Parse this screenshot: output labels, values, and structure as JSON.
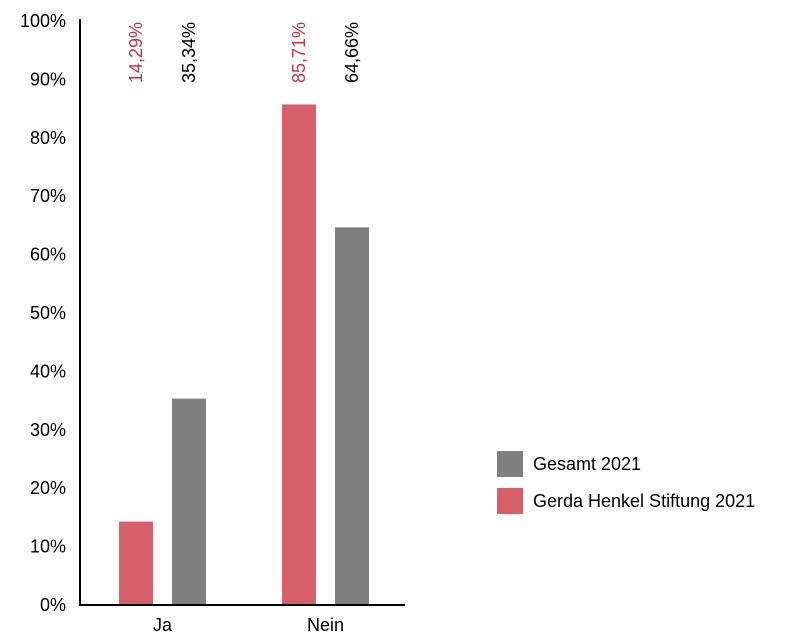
{
  "chart_data": {
    "type": "bar",
    "categories": [
      "Ja",
      "Nein"
    ],
    "series": [
      {
        "name": "Gerda Henkel Stiftung 2021",
        "color": "#D75F6A",
        "values": [
          14.29,
          85.71
        ],
        "labels": [
          "14,29%",
          "85,71%"
        ]
      },
      {
        "name": "Gesamt 2021",
        "color": "#7F7F7F",
        "values": [
          35.34,
          64.66
        ],
        "labels": [
          "35,34%",
          "64,66%"
        ]
      }
    ],
    "y_ticks": [
      {
        "value": 0,
        "label": "0%"
      },
      {
        "value": 10,
        "label": "10%"
      },
      {
        "value": 20,
        "label": "20%"
      },
      {
        "value": 30,
        "label": "30%"
      },
      {
        "value": 40,
        "label": "40%"
      },
      {
        "value": 50,
        "label": "50%"
      },
      {
        "value": 60,
        "label": "60%"
      },
      {
        "value": 70,
        "label": "70%"
      },
      {
        "value": 80,
        "label": "80%"
      },
      {
        "value": 90,
        "label": "90%"
      },
      {
        "value": 100,
        "label": "100%"
      }
    ],
    "ylim": [
      0,
      100
    ],
    "grid": false,
    "legend": {
      "placement": "right",
      "entries": [
        {
          "label": "Gesamt 2021",
          "color": "#7F7F7F"
        },
        {
          "label": "Gerda Henkel Stiftung 2021",
          "color": "#D75F6A"
        }
      ]
    },
    "data_label_colors": {
      "Gerda Henkel Stiftung 2021": "#C8323F",
      "Gesamt 2021": "#000000"
    },
    "axis_color": "#000000"
  }
}
